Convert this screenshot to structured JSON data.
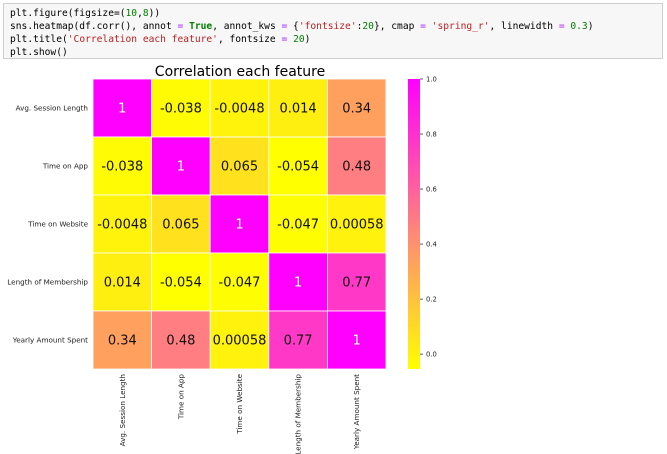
{
  "code_cell": {
    "lines": [
      "plt.figure(figsize=(10,8))",
      "sns.heatmap(df.corr(), annot = True, annot_kws = {'fontsize':20}, cmap = 'spring_r', linewidth = 0.3)",
      "plt.title('Correlation each feature', fontsize = 20)",
      "plt.show()"
    ]
  },
  "chart_data": {
    "type": "heatmap",
    "title": "Correlation each feature",
    "cmap": "spring_r",
    "rows": [
      "Avg. Session Length",
      "Time on App",
      "Time on Website",
      "Length of Membership",
      "Yearly Amount Spent"
    ],
    "cols": [
      "Avg. Session Length",
      "Time on App",
      "Time on Website",
      "Length of Membership",
      "Yearly Amount Spent"
    ],
    "values": [
      [
        1,
        -0.038,
        -0.0048,
        0.014,
        0.34
      ],
      [
        -0.038,
        1,
        0.065,
        -0.054,
        0.48
      ],
      [
        -0.0048,
        0.065,
        1,
        -0.047,
        0.00058
      ],
      [
        0.014,
        -0.054,
        -0.047,
        1,
        0.77
      ],
      [
        0.34,
        0.48,
        0.00058,
        0.77,
        1
      ]
    ],
    "labels": [
      [
        "1",
        "-0.038",
        "-0.0048",
        "0.014",
        "0.34"
      ],
      [
        "-0.038",
        "1",
        "0.065",
        "-0.054",
        "0.48"
      ],
      [
        "-0.0048",
        "0.065",
        "1",
        "-0.047",
        "0.00058"
      ],
      [
        "0.014",
        "-0.054",
        "-0.047",
        "1",
        "0.77"
      ],
      [
        "0.34",
        "0.48",
        "0.00058",
        "0.77",
        "1"
      ]
    ],
    "colorbar": {
      "range": [
        -0.054,
        1
      ],
      "ticks": [
        0.0,
        0.2,
        0.4,
        0.6,
        0.8,
        1.0
      ],
      "tick_labels": [
        "0.0",
        "0.2",
        "0.4",
        "0.6",
        "0.8",
        "1.0"
      ]
    }
  }
}
